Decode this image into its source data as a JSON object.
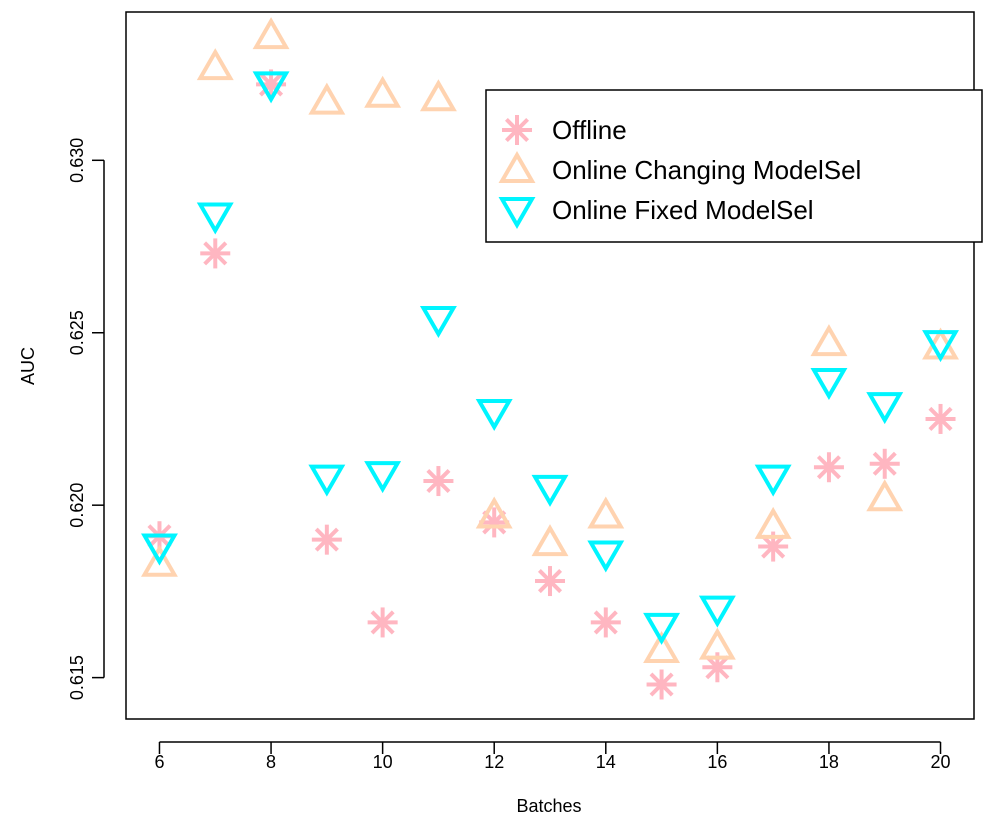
{
  "chart_data": {
    "type": "scatter",
    "title": "",
    "xlabel": "Batches",
    "ylabel": "AUC",
    "xlim": [
      5.4,
      20.6
    ],
    "ylim": [
      0.6138,
      0.6343
    ],
    "x_ticks": [
      6,
      8,
      10,
      12,
      14,
      16,
      18,
      20
    ],
    "y_ticks": [
      0.615,
      0.62,
      0.625,
      0.63
    ],
    "y_tick_labels": [
      "0.615",
      "0.620",
      "0.625",
      "0.630"
    ],
    "grid": false,
    "legend_position": "top-right",
    "x": [
      6,
      7,
      8,
      9,
      10,
      11,
      12,
      13,
      14,
      15,
      16,
      17,
      18,
      19,
      20
    ],
    "series": [
      {
        "name": "Offline",
        "marker": "asterisk",
        "color": "#ffb6c1",
        "values": [
          0.6191,
          0.6273,
          0.6322,
          0.619,
          0.6166,
          0.6207,
          0.6195,
          0.6178,
          0.6166,
          0.6148,
          0.6153,
          0.6188,
          0.6211,
          0.6212,
          0.6225
        ]
      },
      {
        "name": "Online Changing ModelSel",
        "marker": "triangle-up",
        "color": "#ffd3b0",
        "values": [
          0.6183,
          0.6327,
          0.6336,
          0.6317,
          0.6319,
          0.6318,
          0.6197,
          0.6189,
          0.6197,
          0.6158,
          0.6159,
          0.6194,
          0.6247,
          0.6202,
          0.6246
        ]
      },
      {
        "name": "Online Fixed ModelSel",
        "marker": "triangle-down",
        "color": "#00f5ff",
        "values": [
          0.6188,
          0.6284,
          0.6322,
          0.6208,
          0.6209,
          0.6254,
          0.6227,
          0.6205,
          0.6186,
          0.6165,
          0.617,
          0.6208,
          0.6236,
          0.6229,
          0.6247
        ]
      }
    ]
  }
}
